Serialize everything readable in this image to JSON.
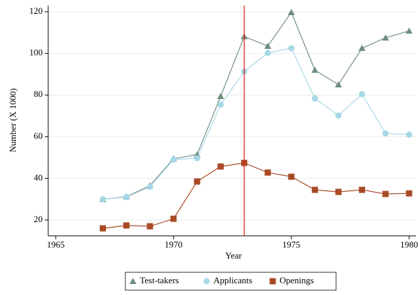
{
  "chart_data": {
    "type": "line",
    "x": [
      1967,
      1968,
      1969,
      1970,
      1971,
      1972,
      1973,
      1974,
      1975,
      1976,
      1977,
      1978,
      1979,
      1980
    ],
    "series": [
      {
        "name": "Test-takers",
        "color": "#6e8e7f",
        "marker": "triangle",
        "values": [
          30,
          31.2,
          36.5,
          49.4,
          51.4,
          79.4,
          108.1,
          103.5,
          119.7,
          92,
          85,
          102.5,
          107.5,
          110.8
        ]
      },
      {
        "name": "Applicants",
        "color": "#a6d8e6",
        "marker": "circle",
        "values": [
          30,
          31,
          36,
          49,
          49.7,
          75.4,
          91.3,
          100.2,
          102.5,
          78.4,
          70.2,
          80.4,
          61.6,
          61
        ]
      },
      {
        "name": "Openings",
        "color": "#a84a26",
        "marker": "square",
        "values": [
          16,
          17.4,
          17,
          20.6,
          38.5,
          45.7,
          47.4,
          42.8,
          40.8,
          34.5,
          33.5,
          34.5,
          32.5,
          32.8
        ]
      }
    ],
    "xlabel": "Year",
    "ylabel": "Number (X 1000)",
    "xlim": [
      1964.68,
      1980.29
    ],
    "ylim": [
      12.4,
      123
    ],
    "xticks": [
      1965,
      1970,
      1975,
      1980
    ],
    "yticks": [
      20,
      40,
      60,
      80,
      100,
      120
    ],
    "vline": {
      "x": 1973,
      "color": "#e0201b"
    },
    "grid": true,
    "legend": "bottom"
  }
}
